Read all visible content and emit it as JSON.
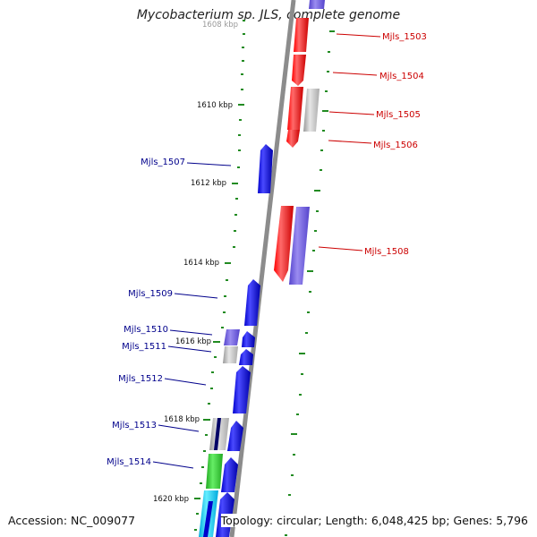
{
  "title": "Mycobacterium sp. JLS, complete genome",
  "accession_text": "Accession: NC_009077",
  "topology_text": "Topology: circular; Length: 6,048,425 bp; Genes: 5,796",
  "colors": {
    "backbone": "#8c8c8c",
    "tick": "#228b22",
    "forward_gene": "#ff0000",
    "reverse_gene": "#0000ff",
    "grey_gene": "#bbbbbb",
    "violet_gene": "#7766dd",
    "green_gene": "#33cc33",
    "cyan_gene": "#00ccff",
    "forward_label": "#cc0000",
    "reverse_label": "#00008b"
  },
  "genome": {
    "scale_labels": [
      {
        "kbp": 1608,
        "text": "1608 kbp"
      },
      {
        "kbp": 1610,
        "text": "1610 kbp"
      },
      {
        "kbp": 1612,
        "text": "1612 kbp"
      },
      {
        "kbp": 1614,
        "text": "1614 kbp"
      },
      {
        "kbp": 1616,
        "text": "1616 kbp"
      },
      {
        "kbp": 1618,
        "text": "1618 kbp"
      },
      {
        "kbp": 1620,
        "text": "1620 kbp"
      }
    ],
    "forward_labels": [
      {
        "text": "Mjls_1503",
        "kbp": 1608.55
      },
      {
        "text": "Mjls_1504",
        "kbp": 1609.4
      },
      {
        "text": "Mjls_1505",
        "kbp": 1610.4
      },
      {
        "text": "Mjls_1506",
        "kbp": 1611.15
      },
      {
        "text": "Mjls_1508",
        "kbp": 1613.65
      }
    ],
    "reverse_labels": [
      {
        "text": "Mjls_1507",
        "kbp": 1611.6
      },
      {
        "text": "Mjls_1509",
        "kbp": 1614.8
      },
      {
        "text": "Mjls_1510",
        "kbp": 1615.75
      },
      {
        "text": "Mjls_1511",
        "kbp": 1616.15
      },
      {
        "text": "Mjls_1512",
        "kbp": 1616.95
      },
      {
        "text": "Mjls_1513",
        "kbp": 1618.2
      },
      {
        "text": "Mjls_1514",
        "kbp": 1619.1
      }
    ]
  }
}
